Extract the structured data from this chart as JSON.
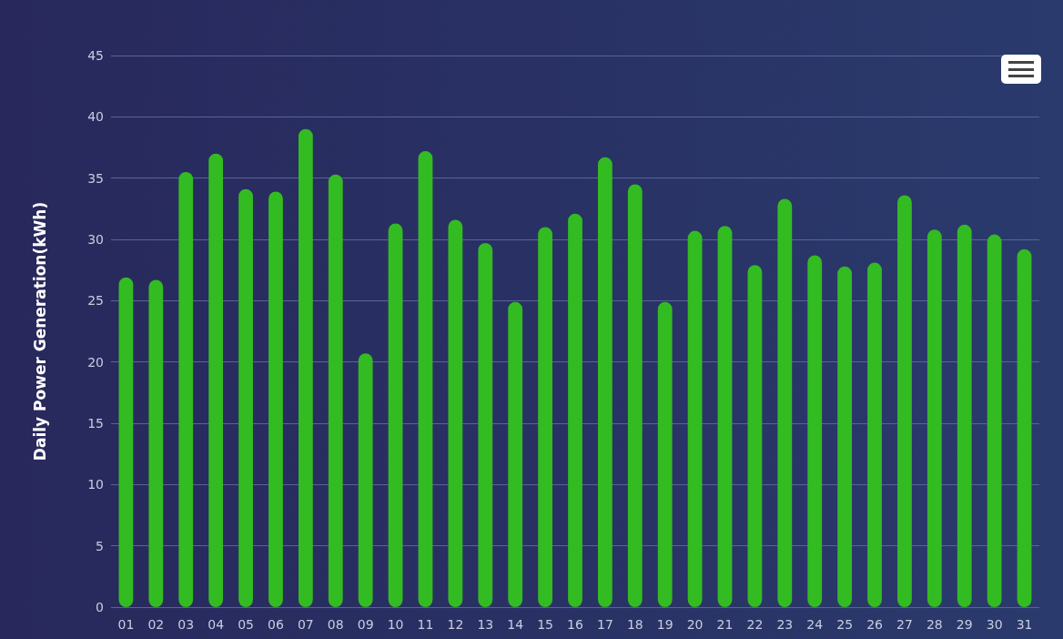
{
  "chart_data": {
    "type": "bar",
    "ylabel": "Daily Power Generation(kWh)",
    "categories": [
      "01",
      "02",
      "03",
      "04",
      "05",
      "06",
      "07",
      "08",
      "09",
      "10",
      "11",
      "12",
      "13",
      "14",
      "15",
      "16",
      "17",
      "18",
      "19",
      "20",
      "21",
      "22",
      "23",
      "24",
      "25",
      "26",
      "27",
      "28",
      "29",
      "30",
      "31"
    ],
    "values": [
      26.9,
      26.7,
      35.5,
      37.0,
      34.1,
      33.9,
      39.0,
      35.3,
      20.7,
      31.3,
      37.2,
      31.6,
      29.7,
      24.9,
      31.0,
      32.1,
      36.7,
      34.5,
      24.9,
      30.7,
      31.1,
      27.9,
      33.3,
      28.7,
      27.8,
      28.1,
      33.6,
      30.8,
      31.2,
      30.4,
      29.2
    ],
    "color": "#33bb22",
    "ylim": [
      0,
      45
    ],
    "yticks": [
      0,
      5,
      10,
      15,
      20,
      25,
      30,
      35,
      40,
      45
    ],
    "grid": "y"
  }
}
